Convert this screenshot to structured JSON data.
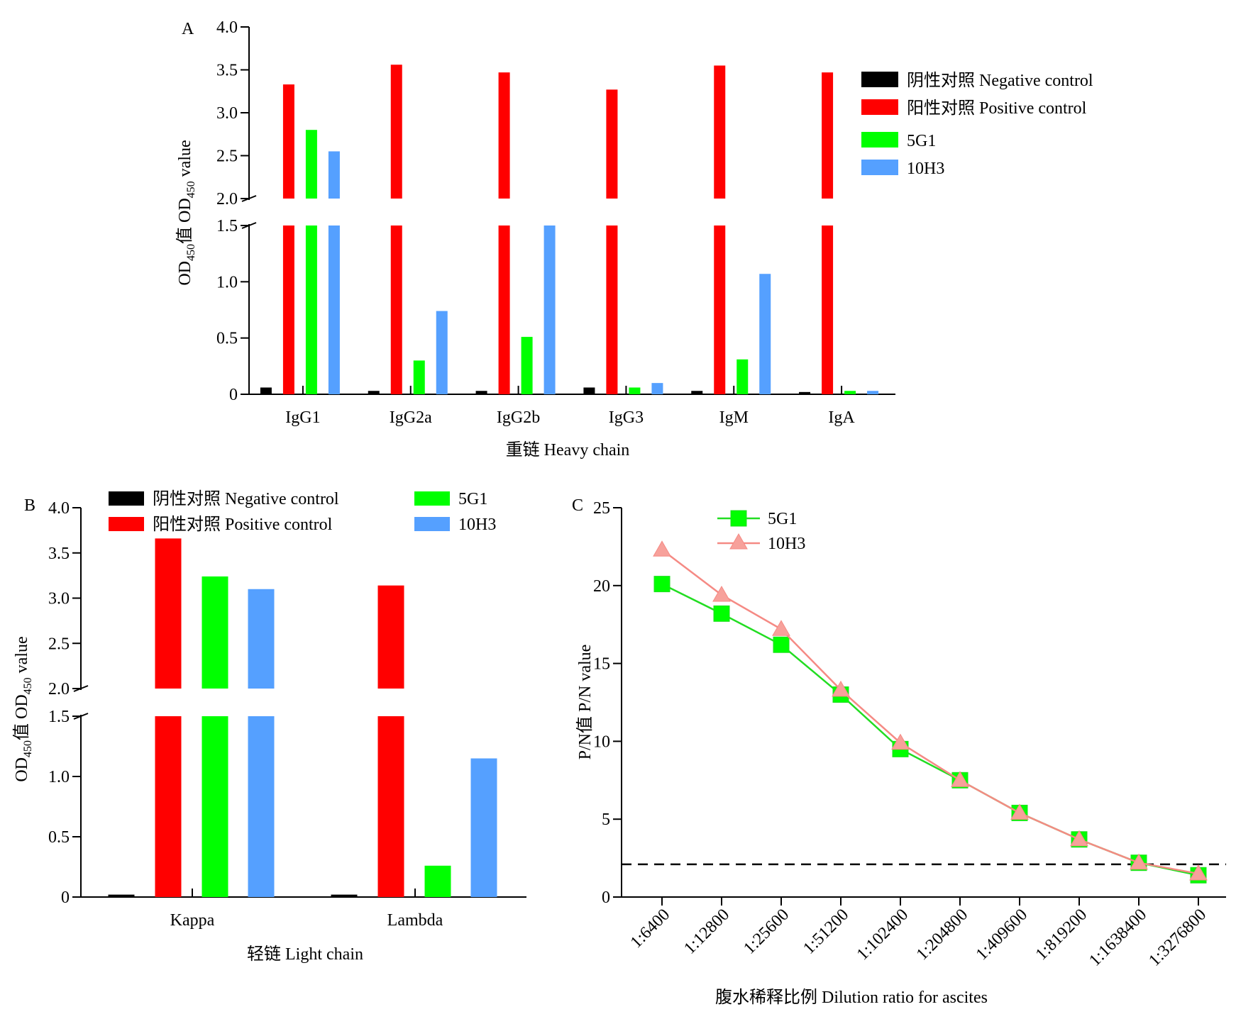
{
  "colors": {
    "negative": "#000000",
    "positive": "#ff0000",
    "g5G1": "#00ff00",
    "h10H3": "#55a0ff",
    "line_5G1": "#22dd22",
    "line_10H3": "#f58a84",
    "marker_10H3": "#f7a19b"
  },
  "chart_data": [
    {
      "panel": "A",
      "type": "bar",
      "ylabel_text": "OD450值 OD450 value",
      "ylabel_parts": [
        "OD",
        "450",
        "值 OD",
        "450",
        " value"
      ],
      "xlabel": "重链 Heavy chain",
      "categories": [
        "IgG1",
        "IgG2a",
        "IgG2b",
        "IgG3",
        "IgM",
        "IgA"
      ],
      "axis_break": [
        1.5,
        2.0
      ],
      "ylim": [
        0,
        4.0
      ],
      "yticks_lower": [
        "0",
        "0.5",
        "1.0",
        "1.5"
      ],
      "yticks_upper": [
        "2.0",
        "2.5",
        "3.0",
        "3.5",
        "4.0"
      ],
      "legend": [
        "阴性对照 Negative control",
        "阳性对照 Positive control",
        "5G1",
        "10H3"
      ],
      "legend_position": "top-right",
      "series": [
        {
          "name": "阴性对照 Negative control",
          "values": [
            0.06,
            0.03,
            0.03,
            0.06,
            0.03,
            0.02
          ]
        },
        {
          "name": "阳性对照 Positive control",
          "values": [
            3.33,
            3.56,
            3.47,
            3.27,
            3.55,
            3.47
          ]
        },
        {
          "name": "5G1",
          "values": [
            2.8,
            0.3,
            0.51,
            0.06,
            0.31,
            0.03
          ]
        },
        {
          "name": "10H3",
          "values": [
            2.55,
            0.74,
            1.5,
            0.1,
            1.07,
            0.03
          ]
        }
      ]
    },
    {
      "panel": "B",
      "type": "bar",
      "ylabel_text": "OD450值 OD450 value",
      "ylabel_parts": [
        "OD",
        "450",
        "值 OD",
        "450",
        " value"
      ],
      "xlabel": "轻链 Light chain",
      "categories": [
        "Kappa",
        "Lambda"
      ],
      "axis_break": [
        1.5,
        2.0
      ],
      "ylim": [
        0,
        4.0
      ],
      "yticks_lower": [
        "0",
        "0.5",
        "1.0",
        "1.5"
      ],
      "yticks_upper": [
        "2.0",
        "2.5",
        "3.0",
        "3.5",
        "4.0"
      ],
      "legend": [
        "阴性对照 Negative control",
        "阳性对照 Positive control",
        "5G1",
        "10H3"
      ],
      "legend_position": "top",
      "series": [
        {
          "name": "阴性对照 Negative control",
          "values": [
            0.02,
            0.02
          ]
        },
        {
          "name": "阳性对照 Positive control",
          "values": [
            3.66,
            3.14
          ]
        },
        {
          "name": "5G1",
          "values": [
            3.24,
            0.26
          ]
        },
        {
          "name": "10H3",
          "values": [
            3.1,
            1.15
          ]
        }
      ]
    },
    {
      "panel": "C",
      "type": "line",
      "ylabel": "P/N值 P/N value",
      "xlabel": "腹水稀释比例 Dilution ratio for ascites",
      "categories": [
        "1:6400",
        "1:12800",
        "1:25600",
        "1:51200",
        "1:102400",
        "1:204800",
        "1:409600",
        "1:819200",
        "1:1638400",
        "1:3276800"
      ],
      "ylim": [
        0,
        25
      ],
      "yticks": [
        "0",
        "5",
        "10",
        "15",
        "20",
        "25"
      ],
      "threshold": 2.1,
      "legend": [
        "5G1",
        "10H3"
      ],
      "legend_position": "top-left",
      "series": [
        {
          "name": "5G1",
          "values": [
            20.1,
            18.2,
            16.2,
            13.0,
            9.5,
            7.5,
            5.4,
            3.7,
            2.2,
            1.4
          ]
        },
        {
          "name": "10H3",
          "values": [
            22.3,
            19.4,
            17.2,
            13.3,
            9.9,
            7.5,
            5.4,
            3.7,
            2.2,
            1.5
          ]
        }
      ]
    }
  ],
  "panel_letters": [
    "A",
    "B",
    "C"
  ]
}
